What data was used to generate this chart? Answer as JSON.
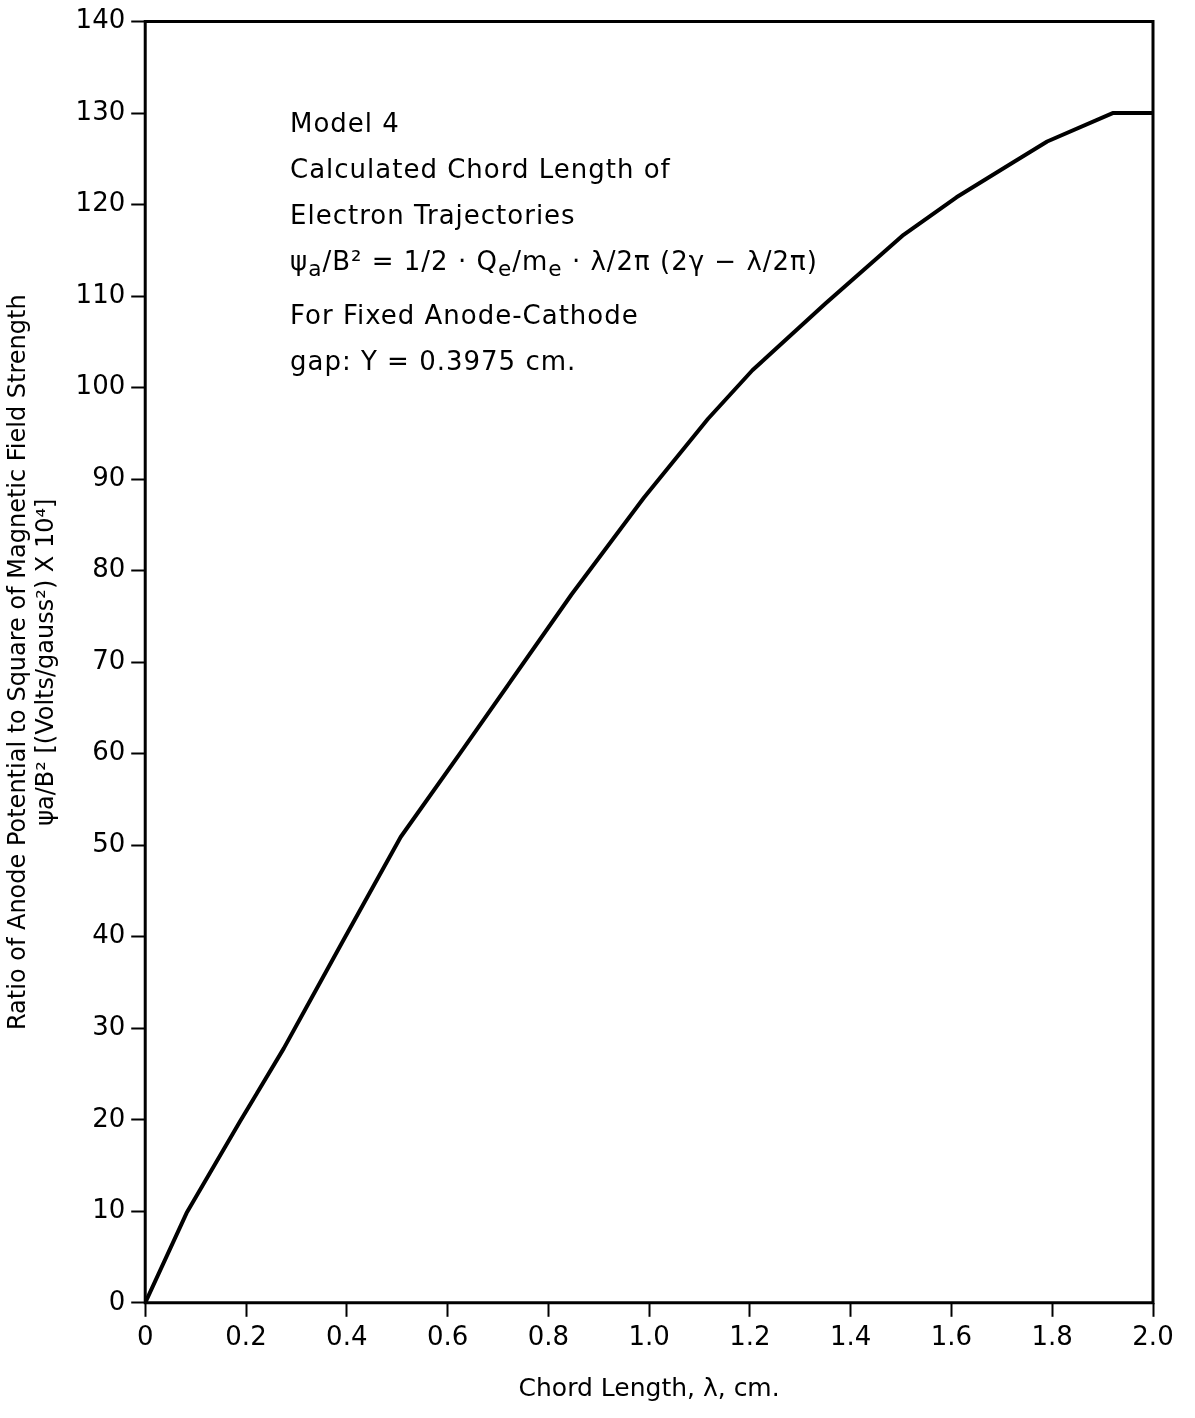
{
  "chart_data": {
    "type": "line",
    "xlabel": "Chord Length, λ, cm.",
    "ylabel": "Ratio of Anode Potential to Square of Magnetic Field Strength\nψa/B² [(Volts/gauss²) X 10⁴]",
    "annotations": [
      "Model  4",
      "Calculated Chord Length of",
      "Electron  Trajectories",
      "ψ$_{a}$/B² = 1/2 · Q$_{e}$/m$_{e}$ · λ/2π (2γ − λ/2π)",
      "For Fixed Anode-Cathode",
      "gap: Y = 0.3975 cm."
    ],
    "series": [
      {
        "color": "#000000",
        "x": [
          0,
          0.082,
          0.188,
          0.275,
          0.391,
          0.507,
          0.623,
          0.846,
          0.99,
          1.117,
          1.205,
          1.35,
          1.505,
          1.61,
          1.79,
          1.92,
          2.0
        ],
        "values": [
          0,
          9.8,
          19.8,
          27.8,
          39.4,
          50.9,
          59.9,
          77.4,
          88.0,
          96.6,
          101.9,
          109.2,
          116.7,
          120.8,
          126.9,
          130,
          130
        ]
      }
    ],
    "xlim": [
      0,
      2
    ],
    "ylim": [
      0,
      140
    ],
    "xticks": [
      0,
      0.2,
      0.4,
      0.6,
      0.8,
      {
        "value": 1,
        "label": "1.0"
      },
      1.2,
      1.4,
      1.6,
      1.8,
      {
        "value": 2,
        "label": "2.0"
      }
    ],
    "yticks": [
      0,
      10,
      20,
      30,
      40,
      50,
      60,
      70,
      80,
      90,
      100,
      110,
      120,
      130,
      140
    ],
    "marker": "none",
    "line_style": "solid"
  }
}
